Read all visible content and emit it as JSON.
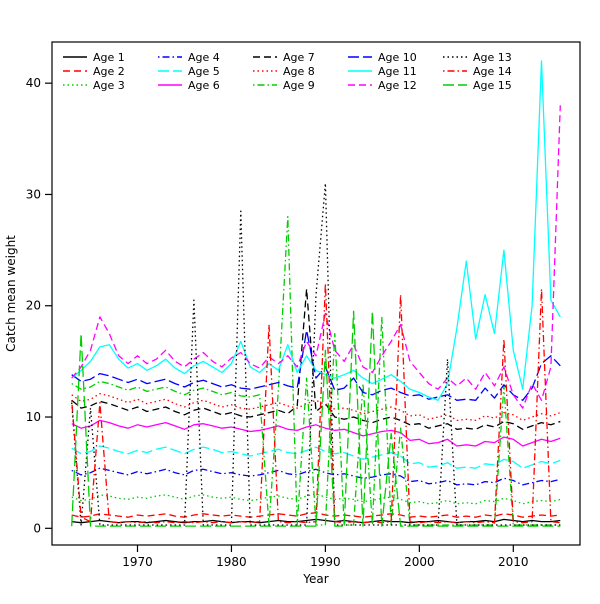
{
  "figure": {
    "background": "#ffffff"
  },
  "chart_data": {
    "type": "line",
    "title": "",
    "xlabel": "Year",
    "ylabel": "Catch mean weight",
    "x_ticks": [
      1970,
      1980,
      1990,
      2000,
      2010
    ],
    "y_ticks": [
      0,
      10,
      20,
      30,
      40
    ],
    "xlim": [
      1960.9,
      2017.1
    ],
    "ylim": [
      -1.5,
      43.7
    ],
    "grid": false,
    "legend_position": "top-left",
    "legend_columns": 5,
    "palette": {
      "black": "#000000",
      "red": "#ff0000",
      "green": "#00cd00",
      "blue": "#0000ff",
      "cyan": "#00ffff",
      "magenta": "#ff00ff"
    },
    "x": [
      1963,
      1964,
      1965,
      1966,
      1967,
      1968,
      1969,
      1970,
      1971,
      1972,
      1973,
      1974,
      1975,
      1976,
      1977,
      1978,
      1979,
      1980,
      1981,
      1982,
      1983,
      1984,
      1985,
      1986,
      1987,
      1988,
      1989,
      1990,
      1991,
      1992,
      1993,
      1994,
      1995,
      1996,
      1997,
      1998,
      1999,
      2000,
      2001,
      2002,
      2003,
      2004,
      2005,
      2006,
      2007,
      2008,
      2009,
      2010,
      2011,
      2012,
      2013,
      2014,
      2015
    ],
    "series": [
      {
        "name": "Age 1",
        "color": "#000000",
        "linetype": "solid",
        "values": [
          0.6,
          0.5,
          0.6,
          0.7,
          0.6,
          0.5,
          0.6,
          0.6,
          0.5,
          0.6,
          0.7,
          0.6,
          0.5,
          0.6,
          0.6,
          0.7,
          0.6,
          0.5,
          0.6,
          0.6,
          0.5,
          0.6,
          0.7,
          0.6,
          0.6,
          0.7,
          0.8,
          0.7,
          0.6,
          0.7,
          0.6,
          0.5,
          0.6,
          0.7,
          0.6,
          0.6,
          0.5,
          0.6,
          0.6,
          0.7,
          0.6,
          0.5,
          0.6,
          0.6,
          0.7,
          0.6,
          0.8,
          0.7,
          0.6,
          0.7,
          0.6,
          0.6,
          0.7
        ]
      },
      {
        "name": "Age 2",
        "color": "#ff0000",
        "linetype": "dashed",
        "values": [
          1.2,
          1.0,
          1.1,
          1.3,
          1.2,
          1.1,
          1.0,
          1.2,
          1.1,
          1.2,
          1.3,
          1.1,
          1.0,
          1.2,
          1.3,
          1.2,
          1.1,
          1.2,
          1.1,
          1.0,
          1.1,
          1.2,
          1.3,
          1.2,
          1.1,
          1.3,
          1.4,
          1.2,
          1.1,
          1.2,
          1.1,
          1.0,
          1.1,
          1.2,
          1.3,
          1.2,
          1.0,
          1.1,
          1.0,
          1.1,
          1.2,
          1.0,
          1.1,
          1.0,
          1.2,
          1.1,
          1.3,
          1.2,
          1.0,
          1.1,
          1.2,
          1.1,
          1.2
        ]
      },
      {
        "name": "Age 3",
        "color": "#00cd00",
        "linetype": "dotted",
        "values": [
          2.8,
          2.5,
          2.6,
          3.0,
          2.9,
          2.7,
          2.6,
          2.8,
          2.7,
          2.9,
          3.0,
          2.8,
          2.6,
          2.9,
          3.0,
          2.8,
          2.7,
          2.8,
          2.6,
          2.5,
          2.6,
          2.8,
          2.9,
          2.7,
          2.6,
          2.9,
          3.1,
          2.8,
          2.6,
          2.7,
          2.6,
          2.4,
          2.5,
          2.7,
          2.8,
          2.6,
          2.3,
          2.4,
          2.2,
          2.3,
          2.5,
          2.2,
          2.3,
          2.2,
          2.5,
          2.4,
          2.7,
          2.5,
          2.2,
          2.4,
          2.5,
          2.4,
          2.6
        ]
      },
      {
        "name": "Age 4",
        "color": "#0000ff",
        "linetype": "dotdash",
        "values": [
          5.2,
          4.8,
          5.0,
          5.4,
          5.2,
          5.0,
          4.8,
          5.1,
          4.9,
          5.1,
          5.3,
          5.0,
          4.8,
          5.2,
          5.3,
          5.1,
          4.9,
          5.0,
          4.8,
          4.7,
          4.8,
          5.0,
          5.2,
          4.9,
          4.8,
          5.1,
          5.3,
          5.0,
          4.8,
          4.9,
          4.7,
          4.5,
          4.6,
          4.8,
          4.9,
          4.7,
          4.2,
          4.3,
          4.0,
          4.1,
          4.3,
          3.9,
          4.0,
          3.9,
          4.2,
          4.1,
          4.5,
          4.3,
          3.9,
          4.1,
          4.3,
          4.2,
          4.4
        ]
      },
      {
        "name": "Age 5",
        "color": "#00ffff",
        "linetype": "longdash",
        "values": [
          7.2,
          6.7,
          6.9,
          7.4,
          7.2,
          6.9,
          6.7,
          7.0,
          6.8,
          7.1,
          7.3,
          7.0,
          6.7,
          7.1,
          7.3,
          7.1,
          6.8,
          6.9,
          6.7,
          6.5,
          6.7,
          6.9,
          7.1,
          6.8,
          6.7,
          7.0,
          7.3,
          6.9,
          6.7,
          6.8,
          6.5,
          6.2,
          6.4,
          6.6,
          6.8,
          6.5,
          5.8,
          5.9,
          5.5,
          5.6,
          5.9,
          5.4,
          5.5,
          5.4,
          5.8,
          5.7,
          6.2,
          6.0,
          5.4,
          5.7,
          6.0,
          5.8,
          6.1
        ]
      },
      {
        "name": "Age 6",
        "color": "#ff00ff",
        "linetype": "solid",
        "values": [
          9.4,
          9.0,
          9.2,
          9.7,
          9.5,
          9.2,
          9.0,
          9.3,
          9.1,
          9.3,
          9.5,
          9.2,
          8.9,
          9.3,
          9.4,
          9.2,
          9.0,
          9.1,
          8.9,
          8.7,
          8.8,
          9.0,
          9.2,
          8.9,
          8.8,
          9.1,
          9.3,
          9.0,
          8.8,
          8.9,
          8.6,
          8.3,
          8.5,
          8.7,
          8.8,
          8.6,
          7.9,
          8.0,
          7.6,
          7.7,
          8.0,
          7.4,
          7.5,
          7.4,
          7.8,
          7.7,
          8.2,
          8.0,
          7.4,
          7.7,
          8.0,
          7.8,
          8.1
        ]
      },
      {
        "name": "Age 7",
        "color": "#000000",
        "linetype": "dashed",
        "values": [
          11.5,
          10.8,
          11.0,
          11.4,
          11.2,
          10.9,
          10.6,
          10.9,
          10.5,
          10.7,
          10.9,
          10.5,
          10.2,
          10.6,
          10.8,
          10.5,
          10.2,
          10.4,
          10.1,
          10.0,
          10.2,
          10.4,
          10.6,
          10.3,
          11.0,
          21.5,
          10.5,
          11.2,
          10.0,
          9.8,
          10.0,
          9.7,
          9.5,
          9.8,
          10.0,
          9.7,
          9.3,
          9.4,
          9.0,
          9.2,
          9.4,
          8.9,
          9.0,
          8.9,
          9.3,
          9.1,
          9.6,
          9.4,
          8.9,
          9.2,
          9.5,
          9.3,
          9.6
        ]
      },
      {
        "name": "Age 8",
        "color": "#ff0000",
        "linetype": "dotted",
        "values": [
          12.0,
          11.4,
          11.6,
          12.1,
          11.9,
          11.6,
          11.3,
          11.6,
          11.2,
          11.4,
          11.6,
          11.2,
          10.9,
          11.3,
          11.5,
          11.2,
          10.9,
          11.1,
          10.8,
          10.7,
          10.9,
          11.1,
          11.3,
          11.0,
          10.8,
          11.2,
          11.5,
          11.1,
          10.7,
          10.8,
          10.6,
          10.3,
          10.5,
          10.7,
          10.9,
          10.6,
          10.1,
          10.2,
          9.8,
          10.0,
          10.2,
          9.7,
          9.8,
          9.7,
          10.1,
          9.9,
          10.4,
          10.2,
          9.7,
          10.0,
          10.3,
          10.1,
          10.4
        ]
      },
      {
        "name": "Age 9",
        "color": "#00cd00",
        "linetype": "dotdash",
        "values": [
          13.0,
          12.5,
          12.7,
          13.2,
          13.0,
          12.7,
          12.4,
          12.7,
          12.3,
          12.5,
          12.7,
          12.3,
          12.0,
          12.4,
          12.6,
          12.3,
          12.0,
          12.2,
          11.9,
          11.8,
          12.0,
          0.3,
          12.5,
          28.0,
          0.3,
          13.5,
          0.3,
          0.3,
          17.5,
          0.3,
          0.3,
          13.0,
          0.3,
          19.0,
          0.3,
          9.0,
          0.3,
          0.3,
          0.3,
          0.3,
          0.3,
          0.3,
          0.3,
          0.3,
          0.3,
          0.3,
          12.8,
          0.3,
          0.3,
          0.3,
          0.3,
          0.3,
          0.3
        ]
      },
      {
        "name": "Age 10",
        "color": "#0000ff",
        "linetype": "longdash",
        "values": [
          13.8,
          13.2,
          13.4,
          13.9,
          13.7,
          13.4,
          13.1,
          13.4,
          13.0,
          13.2,
          13.4,
          13.0,
          12.7,
          13.1,
          13.3,
          13.0,
          12.7,
          12.9,
          12.6,
          12.5,
          12.7,
          12.9,
          13.1,
          12.8,
          12.6,
          17.8,
          13.5,
          14.5,
          12.4,
          12.6,
          13.5,
          12.2,
          12.0,
          12.4,
          12.6,
          12.2,
          11.9,
          12.0,
          11.6,
          11.8,
          12.0,
          11.5,
          11.6,
          11.5,
          12.6,
          11.7,
          12.9,
          12.0,
          11.5,
          12.6,
          14.8,
          15.5,
          14.6
        ]
      },
      {
        "name": "Age 11",
        "color": "#00ffff",
        "linetype": "solid",
        "values": [
          13.5,
          14.2,
          15.0,
          16.3,
          16.5,
          15.2,
          14.4,
          14.8,
          14.2,
          14.6,
          15.2,
          14.4,
          13.9,
          14.6,
          15.0,
          14.5,
          14.0,
          14.8,
          16.8,
          14.5,
          14.0,
          14.8,
          14.2,
          16.5,
          14.0,
          15.5,
          14.2,
          13.8,
          13.5,
          13.8,
          14.2,
          13.5,
          13.0,
          13.4,
          13.8,
          13.2,
          12.5,
          12.2,
          11.8,
          11.5,
          13.0,
          18.0,
          24.0,
          17.0,
          21.0,
          17.5,
          25.0,
          16.0,
          12.5,
          20.0,
          42.0,
          20.5,
          19.0
        ]
      },
      {
        "name": "Age 12",
        "color": "#ff00ff",
        "linetype": "dashed",
        "values": [
          13.5,
          14.5,
          16.0,
          19.0,
          17.5,
          15.5,
          14.8,
          15.5,
          14.8,
          15.2,
          16.0,
          15.0,
          14.5,
          15.2,
          15.8,
          15.0,
          14.5,
          15.3,
          15.8,
          14.8,
          14.4,
          15.4,
          14.8,
          15.5,
          14.5,
          16.8,
          15.5,
          19.3,
          16.0,
          15.0,
          16.5,
          14.5,
          14.0,
          15.5,
          16.8,
          18.3,
          15.0,
          14.0,
          13.0,
          12.5,
          13.5,
          12.8,
          13.5,
          12.5,
          14.0,
          12.8,
          14.5,
          12.0,
          10.8,
          13.0,
          11.5,
          14.5,
          38.0
        ]
      },
      {
        "name": "Age 13",
        "color": "#000000",
        "linetype": "dotted",
        "values": [
          11.3,
          0.3,
          10.8,
          0.3,
          0.3,
          0.3,
          0.3,
          0.3,
          0.3,
          0.3,
          0.3,
          0.3,
          0.3,
          20.5,
          0.3,
          0.3,
          0.3,
          0.3,
          28.5,
          0.3,
          0.3,
          0.3,
          0.3,
          0.3,
          0.3,
          0.3,
          21.0,
          31.0,
          0.3,
          0.3,
          0.3,
          0.3,
          0.3,
          0.3,
          0.3,
          0.3,
          0.3,
          0.3,
          0.3,
          0.3,
          15.2,
          0.3,
          0.3,
          0.3,
          0.3,
          0.3,
          0.3,
          0.3,
          0.3,
          0.3,
          0.3,
          0.3,
          0.3
        ]
      },
      {
        "name": "Age 14",
        "color": "#ff0000",
        "linetype": "dotdash",
        "values": [
          11.5,
          1.0,
          0.6,
          11.3,
          0.6,
          0.5,
          0.6,
          0.5,
          0.6,
          0.5,
          0.6,
          0.5,
          0.6,
          0.5,
          0.6,
          0.5,
          0.6,
          0.5,
          0.6,
          0.5,
          0.6,
          18.3,
          0.6,
          0.5,
          0.6,
          0.5,
          0.6,
          22.0,
          0.6,
          0.5,
          0.6,
          0.5,
          0.6,
          0.5,
          0.6,
          21.0,
          0.6,
          0.5,
          0.6,
          0.5,
          0.6,
          0.5,
          0.6,
          0.5,
          0.6,
          0.5,
          17.0,
          0.6,
          0.5,
          0.6,
          21.5,
          0.6,
          0.5
        ]
      },
      {
        "name": "Age 15",
        "color": "#00cd00",
        "linetype": "longdash",
        "values": [
          0.2,
          17.5,
          0.2,
          0.2,
          0.2,
          0.2,
          0.2,
          0.2,
          0.2,
          0.2,
          0.2,
          0.2,
          0.2,
          0.2,
          0.2,
          0.2,
          0.2,
          0.2,
          0.2,
          0.2,
          0.2,
          0.2,
          0.2,
          0.2,
          0.2,
          0.2,
          0.2,
          16.0,
          0.2,
          0.2,
          19.5,
          0.2,
          19.5,
          0.2,
          8.5,
          0.2,
          0.2,
          0.2,
          0.2,
          0.2,
          0.2,
          0.2,
          0.2,
          0.2,
          0.2,
          0.2,
          0.2,
          0.2,
          0.2,
          0.2,
          0.2,
          0.2,
          0.2
        ]
      }
    ]
  }
}
